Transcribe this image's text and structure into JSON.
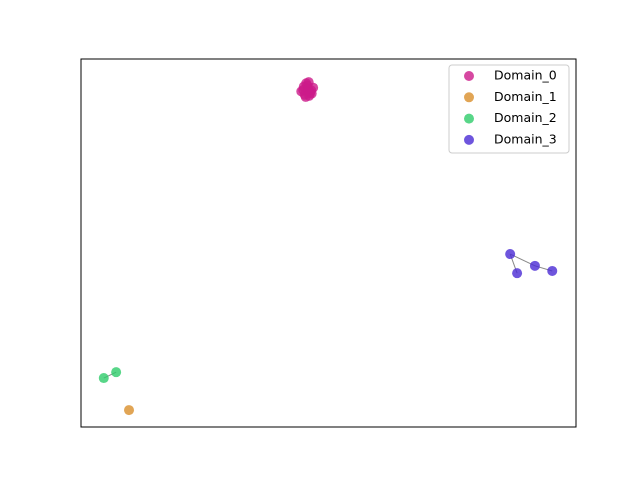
{
  "chart_data": {
    "type": "scatter",
    "xlim": [
      0,
      1
    ],
    "ylim": [
      0,
      1
    ],
    "legend": "upper right",
    "series": [
      {
        "name": "Domain_0",
        "color": "#cc1a8a",
        "x": [
          0.449,
          0.457,
          0.465,
          0.452,
          0.461,
          0.445,
          0.469,
          0.455,
          0.463,
          0.45,
          0.459,
          0.466,
          0.454,
          0.46
        ],
        "values": [
          0.916,
          0.928,
          0.915,
          0.903,
          0.9,
          0.912,
          0.922,
          0.934,
          0.908,
          0.925,
          0.918,
          0.906,
          0.897,
          0.937
        ],
        "edges": [
          [
            0,
            1
          ],
          [
            1,
            2
          ],
          [
            3,
            4
          ]
        ]
      },
      {
        "name": "Domain_1",
        "color": "#d98e2b",
        "x": [
          0.097
        ],
        "values": [
          0.046
        ],
        "edges": []
      },
      {
        "name": "Domain_2",
        "color": "#2ecc6a",
        "x": [
          0.046,
          0.071
        ],
        "values": [
          0.133,
          0.149
        ],
        "edges": [
          [
            0,
            1
          ]
        ]
      },
      {
        "name": "Domain_3",
        "color": "#4a2bd4",
        "x": [
          0.867,
          0.881,
          0.917,
          0.952
        ],
        "values": [
          0.47,
          0.418,
          0.438,
          0.424
        ],
        "edges": [
          [
            0,
            1
          ],
          [
            0,
            2
          ],
          [
            2,
            3
          ]
        ]
      }
    ]
  }
}
